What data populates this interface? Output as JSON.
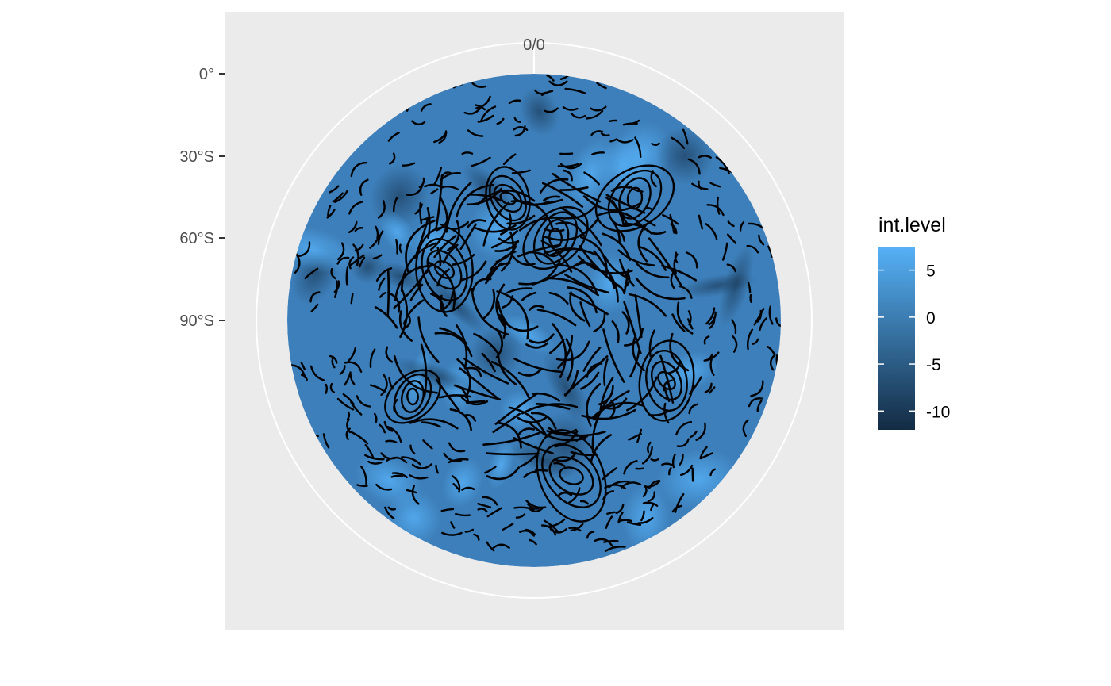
{
  "chart_data": {
    "type": "heatmap",
    "title": "",
    "projection": "polar",
    "theta_axis": {
      "tick_labels": [
        "0/0"
      ]
    },
    "r_axis": {
      "tick_labels": [
        "0°",
        "30°S",
        "60°S",
        "90°S"
      ],
      "values": [
        0,
        -30,
        -60,
        -90
      ]
    },
    "fill_variable": "int.level",
    "legend": {
      "title": "int.level",
      "placement": "right",
      "ticks": [
        {
          "value": 5,
          "label": "5"
        },
        {
          "value": 0,
          "label": "0"
        },
        {
          "value": -5,
          "label": "-5"
        },
        {
          "value": -10,
          "label": "-10"
        }
      ],
      "range": [
        -12,
        7.5
      ],
      "colors": {
        "low": "#132b43",
        "high": "#56b1f7"
      }
    },
    "grid": true,
    "overlay": "streamlines",
    "panel_background": "#ebebeb"
  }
}
